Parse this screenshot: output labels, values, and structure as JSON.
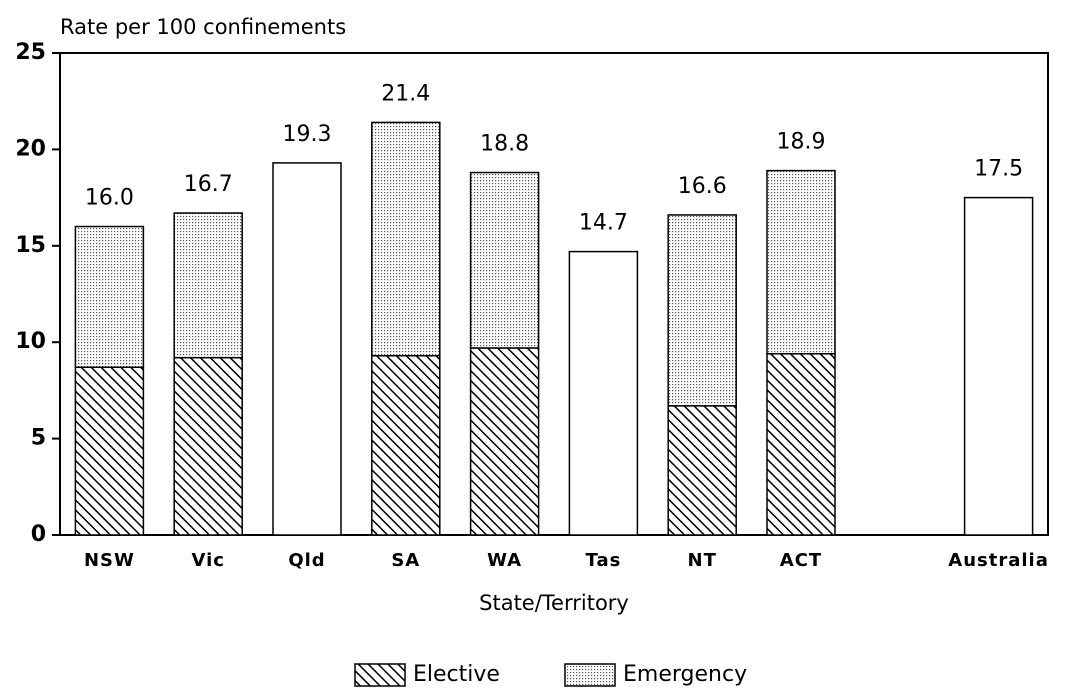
{
  "chart_data": {
    "type": "stacked_bar",
    "y_axis_label": "Rate per 100 confinements",
    "x_axis_label": "State/Territory",
    "categories": [
      "NSW",
      "Vic",
      "Qld",
      "SA",
      "WA",
      "Tas",
      "NT",
      "ACT",
      null,
      "Australia"
    ],
    "series": [
      {
        "name": "Elective",
        "color": "#000000",
        "pattern": "hatch",
        "values": [
          8.7,
          9.2,
          null,
          9.3,
          9.7,
          null,
          6.7,
          9.4,
          null,
          null
        ]
      },
      {
        "name": "Emergency",
        "color": "#000000",
        "pattern": "dots",
        "values": [
          7.3,
          7.5,
          null,
          12.1,
          9.1,
          null,
          9.9,
          9.5,
          null,
          null
        ]
      }
    ],
    "totals": {
      "values": [
        16.0,
        16.7,
        19.3,
        21.4,
        18.8,
        14.7,
        16.6,
        18.9,
        null,
        17.5
      ],
      "value_labels": [
        "16.0",
        "16.7",
        "19.3",
        "21.4",
        "18.8",
        "14.7",
        "16.6",
        "18.9",
        null,
        "17.5"
      ]
    },
    "ylim": [
      0,
      25
    ],
    "yticks": [
      0,
      5,
      10,
      15,
      20,
      25
    ],
    "grid": false,
    "legend": "bottom"
  }
}
